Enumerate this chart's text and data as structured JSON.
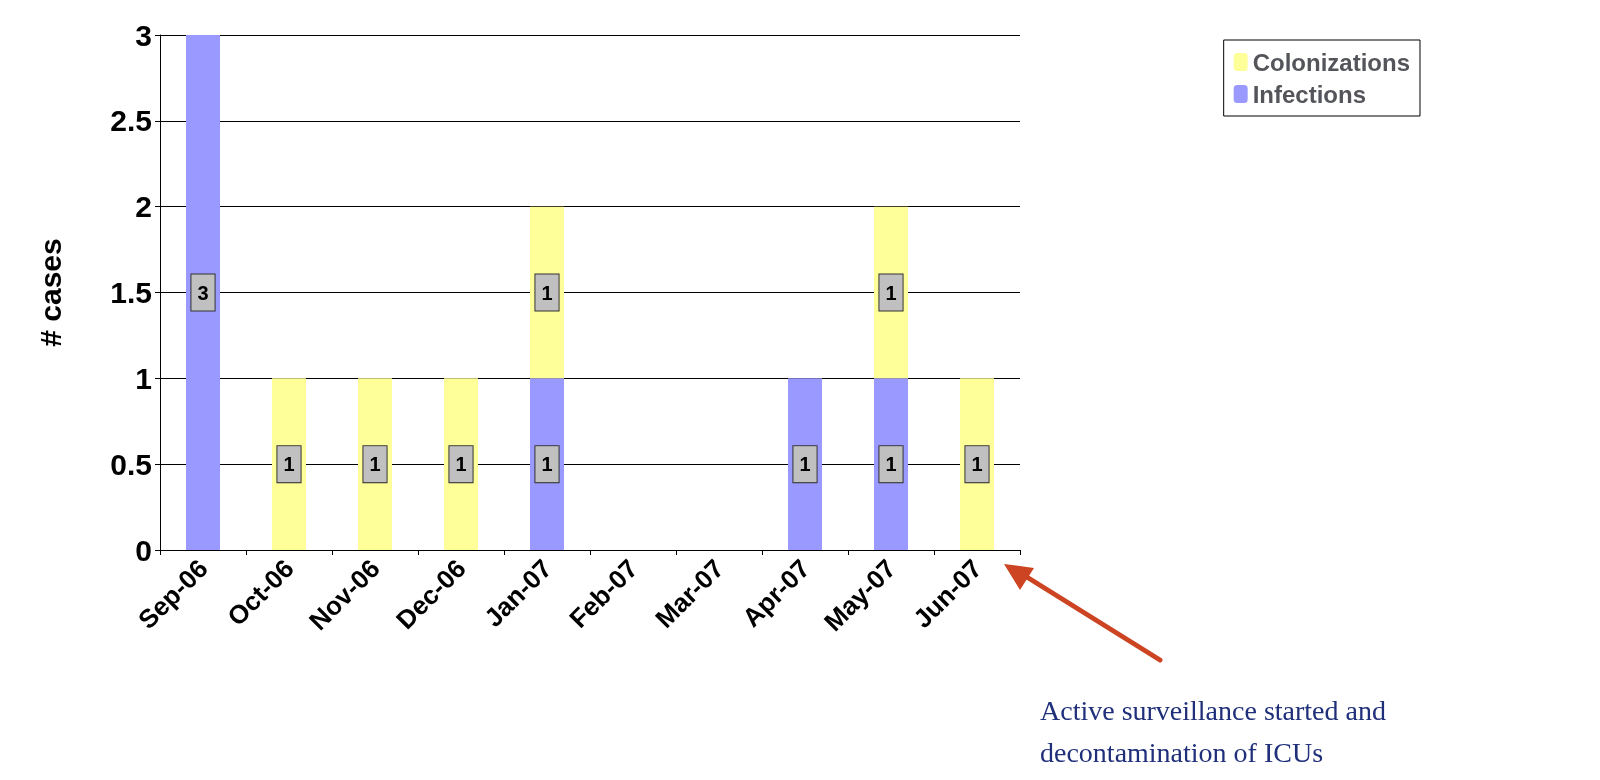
{
  "chart_data": {
    "type": "bar",
    "stacked": true,
    "ylabel": "# cases",
    "categories": [
      "Sep-06",
      "Oct-06",
      "Nov-06",
      "Dec-06",
      "Jan-07",
      "Feb-07",
      "Mar-07",
      "Apr-07",
      "May-07",
      "Jun-07"
    ],
    "series": [
      {
        "name": "Infections",
        "color": "#9999ff",
        "values": [
          3,
          0,
          0,
          0,
          1,
          0,
          0,
          1,
          1,
          0
        ],
        "value_labels": [
          "3",
          null,
          null,
          null,
          "1",
          null,
          null,
          "1",
          "1",
          null
        ]
      },
      {
        "name": "Colonizations",
        "color": "#ffff99",
        "values": [
          0,
          1,
          1,
          1,
          1,
          0,
          0,
          0,
          1,
          1
        ],
        "value_labels": [
          null,
          "1",
          "1",
          "1",
          "1",
          null,
          null,
          null,
          "1",
          "1"
        ]
      }
    ],
    "ylim": [
      0,
      3
    ],
    "yticks": [
      0,
      0.5,
      1,
      1.5,
      2,
      2.5,
      3
    ],
    "grid": "y",
    "legend": "top right",
    "annotations": [
      "Active surveillance started and decontamination of ICUs"
    ]
  }
}
